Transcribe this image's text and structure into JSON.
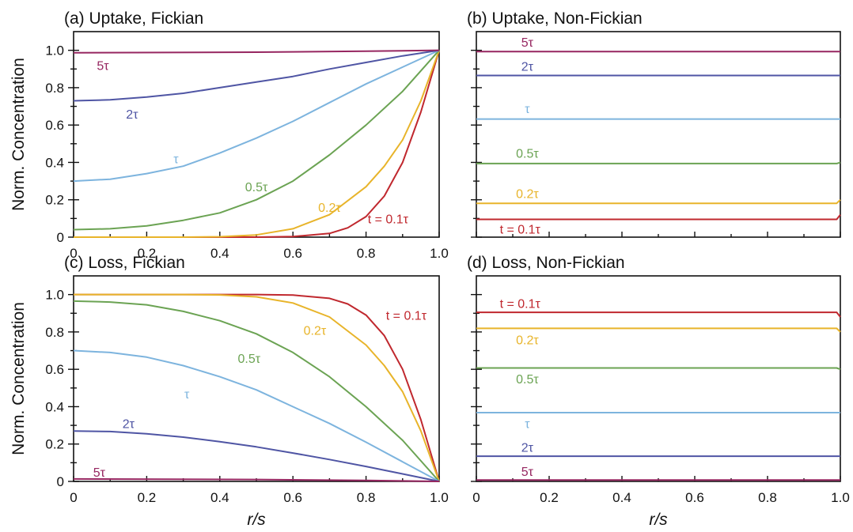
{
  "x_axis_label": "r/s",
  "y_axis_label": "Norm. Concentration",
  "chart_data": [
    {
      "type": "line",
      "title": "(a) Uptake, Fickian",
      "xlabel": "",
      "ylabel": "Norm. Concentration",
      "xlim": [
        0,
        1
      ],
      "ylim": [
        0,
        1.1
      ],
      "xticks": [
        "0",
        "0.2",
        "0.4",
        "0.6",
        "0.8",
        "1.0"
      ],
      "yticks": [
        "0",
        "0.2",
        "0.4",
        "0.6",
        "0.8",
        "1.0"
      ],
      "series": [
        {
          "name": "t = 0.1τ",
          "color": "#c0282e",
          "points": [
            [
              0,
              0
            ],
            [
              0.5,
              0
            ],
            [
              0.6,
              0.003
            ],
            [
              0.7,
              0.02
            ],
            [
              0.75,
              0.05
            ],
            [
              0.8,
              0.11
            ],
            [
              0.85,
              0.22
            ],
            [
              0.9,
              0.4
            ],
            [
              0.95,
              0.67
            ],
            [
              1.0,
              1.0
            ]
          ]
        },
        {
          "name": "0.2τ",
          "color": "#e8b42a",
          "points": [
            [
              0,
              0
            ],
            [
              0.3,
              0
            ],
            [
              0.4,
              0.002
            ],
            [
              0.5,
              0.012
            ],
            [
              0.6,
              0.045
            ],
            [
              0.7,
              0.12
            ],
            [
              0.8,
              0.27
            ],
            [
              0.85,
              0.38
            ],
            [
              0.9,
              0.52
            ],
            [
              0.95,
              0.73
            ],
            [
              1.0,
              1.0
            ]
          ]
        },
        {
          "name": "0.5τ",
          "color": "#6ba353",
          "points": [
            [
              0,
              0.04
            ],
            [
              0.1,
              0.045
            ],
            [
              0.2,
              0.06
            ],
            [
              0.3,
              0.09
            ],
            [
              0.4,
              0.13
            ],
            [
              0.5,
              0.2
            ],
            [
              0.6,
              0.3
            ],
            [
              0.7,
              0.44
            ],
            [
              0.8,
              0.6
            ],
            [
              0.9,
              0.78
            ],
            [
              1.0,
              1.0
            ]
          ]
        },
        {
          "name": "τ",
          "color": "#7db4de",
          "points": [
            [
              0,
              0.3
            ],
            [
              0.1,
              0.31
            ],
            [
              0.2,
              0.34
            ],
            [
              0.3,
              0.38
            ],
            [
              0.4,
              0.45
            ],
            [
              0.5,
              0.53
            ],
            [
              0.6,
              0.62
            ],
            [
              0.7,
              0.72
            ],
            [
              0.8,
              0.82
            ],
            [
              0.9,
              0.91
            ],
            [
              1.0,
              1.0
            ]
          ]
        },
        {
          "name": "2τ",
          "color": "#4f55a4",
          "points": [
            [
              0,
              0.73
            ],
            [
              0.1,
              0.735
            ],
            [
              0.2,
              0.75
            ],
            [
              0.3,
              0.77
            ],
            [
              0.4,
              0.8
            ],
            [
              0.5,
              0.83
            ],
            [
              0.6,
              0.86
            ],
            [
              0.7,
              0.9
            ],
            [
              0.8,
              0.935
            ],
            [
              0.9,
              0.97
            ],
            [
              1.0,
              1.0
            ]
          ]
        },
        {
          "name": "5τ",
          "color": "#962660",
          "points": [
            [
              0,
              0.987
            ],
            [
              0.5,
              0.99
            ],
            [
              0.8,
              0.995
            ],
            [
              1.0,
              1.0
            ]
          ]
        }
      ],
      "labels": [
        {
          "text": "5τ",
          "series": "5τ",
          "x": 0.08,
          "y": 0.92
        },
        {
          "text": "2τ",
          "series": "2τ",
          "x": 0.16,
          "y": 0.66
        },
        {
          "text": "τ",
          "series": "τ",
          "x": 0.28,
          "y": 0.42
        },
        {
          "text": "0.5τ",
          "series": "0.5τ",
          "x": 0.5,
          "y": 0.27
        },
        {
          "text": "0.2τ",
          "series": "0.2τ",
          "x": 0.7,
          "y": 0.16
        },
        {
          "text": "t = 0.1τ",
          "series": "t = 0.1τ",
          "x": 0.86,
          "y": 0.1
        }
      ]
    },
    {
      "type": "line",
      "title": "(b) Uptake, Non-Fickian",
      "xlabel": "",
      "ylabel": "",
      "xlim": [
        0,
        1
      ],
      "ylim": [
        0,
        1.1
      ],
      "xticks": [],
      "yticks": [],
      "series": [
        {
          "name": "5τ",
          "color": "#962660",
          "points": [
            [
              0,
              0.993
            ],
            [
              1.0,
              0.993
            ]
          ]
        },
        {
          "name": "2τ",
          "color": "#4f55a4",
          "points": [
            [
              0,
              0.865
            ],
            [
              1.0,
              0.865
            ]
          ]
        },
        {
          "name": "τ",
          "color": "#7db4de",
          "points": [
            [
              0,
              0.632
            ],
            [
              1.0,
              0.632
            ]
          ]
        },
        {
          "name": "0.5τ",
          "color": "#6ba353",
          "points": [
            [
              0,
              0.394
            ],
            [
              0.99,
              0.394
            ],
            [
              1.0,
              0.4
            ]
          ]
        },
        {
          "name": "0.2τ",
          "color": "#e8b42a",
          "points": [
            [
              0,
              0.181
            ],
            [
              0.99,
              0.181
            ],
            [
              1.0,
              0.2
            ]
          ]
        },
        {
          "name": "t = 0.1τ",
          "color": "#c0282e",
          "points": [
            [
              0,
              0.095
            ],
            [
              0.99,
              0.095
            ],
            [
              1.0,
              0.12
            ]
          ]
        }
      ],
      "labels": [
        {
          "text": "5τ",
          "series": "5τ",
          "x": 0.14,
          "y": 1.045
        },
        {
          "text": "2τ",
          "series": "2τ",
          "x": 0.14,
          "y": 0.915
        },
        {
          "text": "τ",
          "series": "τ",
          "x": 0.14,
          "y": 0.69
        },
        {
          "text": "0.5τ",
          "series": "0.5τ",
          "x": 0.14,
          "y": 0.45
        },
        {
          "text": "0.2τ",
          "series": "0.2τ",
          "x": 0.14,
          "y": 0.235
        },
        {
          "text": "t = 0.1τ",
          "series": "t = 0.1τ",
          "x": 0.12,
          "y": 0.045
        }
      ]
    },
    {
      "type": "line",
      "title": "(c) Loss, Fickian",
      "xlabel": "r/s",
      "ylabel": "Norm. Concentration",
      "xlim": [
        0,
        1
      ],
      "ylim": [
        0,
        1.1
      ],
      "xticks": [
        "0",
        "0.2",
        "0.4",
        "0.6",
        "0.8",
        "1.0"
      ],
      "yticks": [
        "0",
        "0.2",
        "0.4",
        "0.6",
        "0.8",
        "1.0"
      ],
      "series": [
        {
          "name": "t = 0.1τ",
          "color": "#c0282e",
          "points": [
            [
              0,
              1.0
            ],
            [
              0.5,
              1.0
            ],
            [
              0.6,
              0.997
            ],
            [
              0.7,
              0.98
            ],
            [
              0.75,
              0.95
            ],
            [
              0.8,
              0.89
            ],
            [
              0.85,
              0.78
            ],
            [
              0.9,
              0.6
            ],
            [
              0.95,
              0.33
            ],
            [
              1.0,
              0
            ]
          ]
        },
        {
          "name": "0.2τ",
          "color": "#e8b42a",
          "points": [
            [
              0,
              1.0
            ],
            [
              0.3,
              1.0
            ],
            [
              0.4,
              0.998
            ],
            [
              0.5,
              0.988
            ],
            [
              0.6,
              0.955
            ],
            [
              0.7,
              0.88
            ],
            [
              0.8,
              0.73
            ],
            [
              0.85,
              0.62
            ],
            [
              0.9,
              0.48
            ],
            [
              0.95,
              0.27
            ],
            [
              1.0,
              0
            ]
          ]
        },
        {
          "name": "0.5τ",
          "color": "#6ba353",
          "points": [
            [
              0,
              0.965
            ],
            [
              0.1,
              0.96
            ],
            [
              0.2,
              0.945
            ],
            [
              0.3,
              0.91
            ],
            [
              0.4,
              0.86
            ],
            [
              0.5,
              0.79
            ],
            [
              0.6,
              0.69
            ],
            [
              0.7,
              0.56
            ],
            [
              0.8,
              0.4
            ],
            [
              0.9,
              0.22
            ],
            [
              1.0,
              0
            ]
          ]
        },
        {
          "name": "τ",
          "color": "#7db4de",
          "points": [
            [
              0,
              0.7
            ],
            [
              0.1,
              0.69
            ],
            [
              0.2,
              0.665
            ],
            [
              0.3,
              0.62
            ],
            [
              0.4,
              0.56
            ],
            [
              0.5,
              0.49
            ],
            [
              0.6,
              0.4
            ],
            [
              0.7,
              0.31
            ],
            [
              0.8,
              0.21
            ],
            [
              0.9,
              0.105
            ],
            [
              1.0,
              0
            ]
          ]
        },
        {
          "name": "2τ",
          "color": "#4f55a4",
          "points": [
            [
              0,
              0.27
            ],
            [
              0.1,
              0.267
            ],
            [
              0.2,
              0.255
            ],
            [
              0.3,
              0.237
            ],
            [
              0.4,
              0.213
            ],
            [
              0.5,
              0.185
            ],
            [
              0.6,
              0.152
            ],
            [
              0.7,
              0.117
            ],
            [
              0.8,
              0.08
            ],
            [
              0.9,
              0.04
            ],
            [
              1.0,
              0
            ]
          ]
        },
        {
          "name": "5τ",
          "color": "#962660",
          "points": [
            [
              0,
              0.013
            ],
            [
              0.5,
              0.01
            ],
            [
              0.8,
              0.005
            ],
            [
              1.0,
              0
            ]
          ]
        }
      ],
      "labels": [
        {
          "text": "t = 0.1τ",
          "series": "t = 0.1τ",
          "x": 0.91,
          "y": 0.89
        },
        {
          "text": "0.2τ",
          "series": "0.2τ",
          "x": 0.66,
          "y": 0.81
        },
        {
          "text": "0.5τ",
          "series": "0.5τ",
          "x": 0.48,
          "y": 0.66
        },
        {
          "text": "τ",
          "series": "τ",
          "x": 0.31,
          "y": 0.47
        },
        {
          "text": "2τ",
          "series": "2τ",
          "x": 0.15,
          "y": 0.31
        },
        {
          "text": "5τ",
          "series": "5τ",
          "x": 0.07,
          "y": 0.05
        }
      ]
    },
    {
      "type": "line",
      "title": "(d) Loss, Non-Fickian",
      "xlabel": "r/s",
      "ylabel": "",
      "xlim": [
        0,
        1
      ],
      "ylim": [
        0,
        1.1
      ],
      "xticks": [
        "0",
        "0.2",
        "0.4",
        "0.6",
        "0.8",
        "1.0"
      ],
      "yticks": [],
      "series": [
        {
          "name": "t = 0.1τ",
          "color": "#c0282e",
          "points": [
            [
              0,
              0.905
            ],
            [
              0.99,
              0.905
            ],
            [
              1.0,
              0.88
            ]
          ]
        },
        {
          "name": "0.2τ",
          "color": "#e8b42a",
          "points": [
            [
              0,
              0.819
            ],
            [
              0.99,
              0.819
            ],
            [
              1.0,
              0.8
            ]
          ]
        },
        {
          "name": "0.5τ",
          "color": "#6ba353",
          "points": [
            [
              0,
              0.607
            ],
            [
              0.99,
              0.607
            ],
            [
              1.0,
              0.6
            ]
          ]
        },
        {
          "name": "τ",
          "color": "#7db4de",
          "points": [
            [
              0,
              0.368
            ],
            [
              1.0,
              0.368
            ]
          ]
        },
        {
          "name": "2τ",
          "color": "#4f55a4",
          "points": [
            [
              0,
              0.135
            ],
            [
              1.0,
              0.135
            ]
          ]
        },
        {
          "name": "5τ",
          "color": "#962660",
          "points": [
            [
              0,
              0.007
            ],
            [
              1.0,
              0.007
            ]
          ]
        }
      ],
      "labels": [
        {
          "text": "t = 0.1τ",
          "series": "t = 0.1τ",
          "x": 0.12,
          "y": 0.955
        },
        {
          "text": "0.2τ",
          "series": "0.2τ",
          "x": 0.14,
          "y": 0.76
        },
        {
          "text": "0.5τ",
          "series": "0.5τ",
          "x": 0.14,
          "y": 0.55
        },
        {
          "text": "τ",
          "series": "τ",
          "x": 0.14,
          "y": 0.31
        },
        {
          "text": "2τ",
          "series": "2τ",
          "x": 0.14,
          "y": 0.185
        },
        {
          "text": "5τ",
          "series": "5τ",
          "x": 0.14,
          "y": 0.055
        }
      ]
    }
  ]
}
